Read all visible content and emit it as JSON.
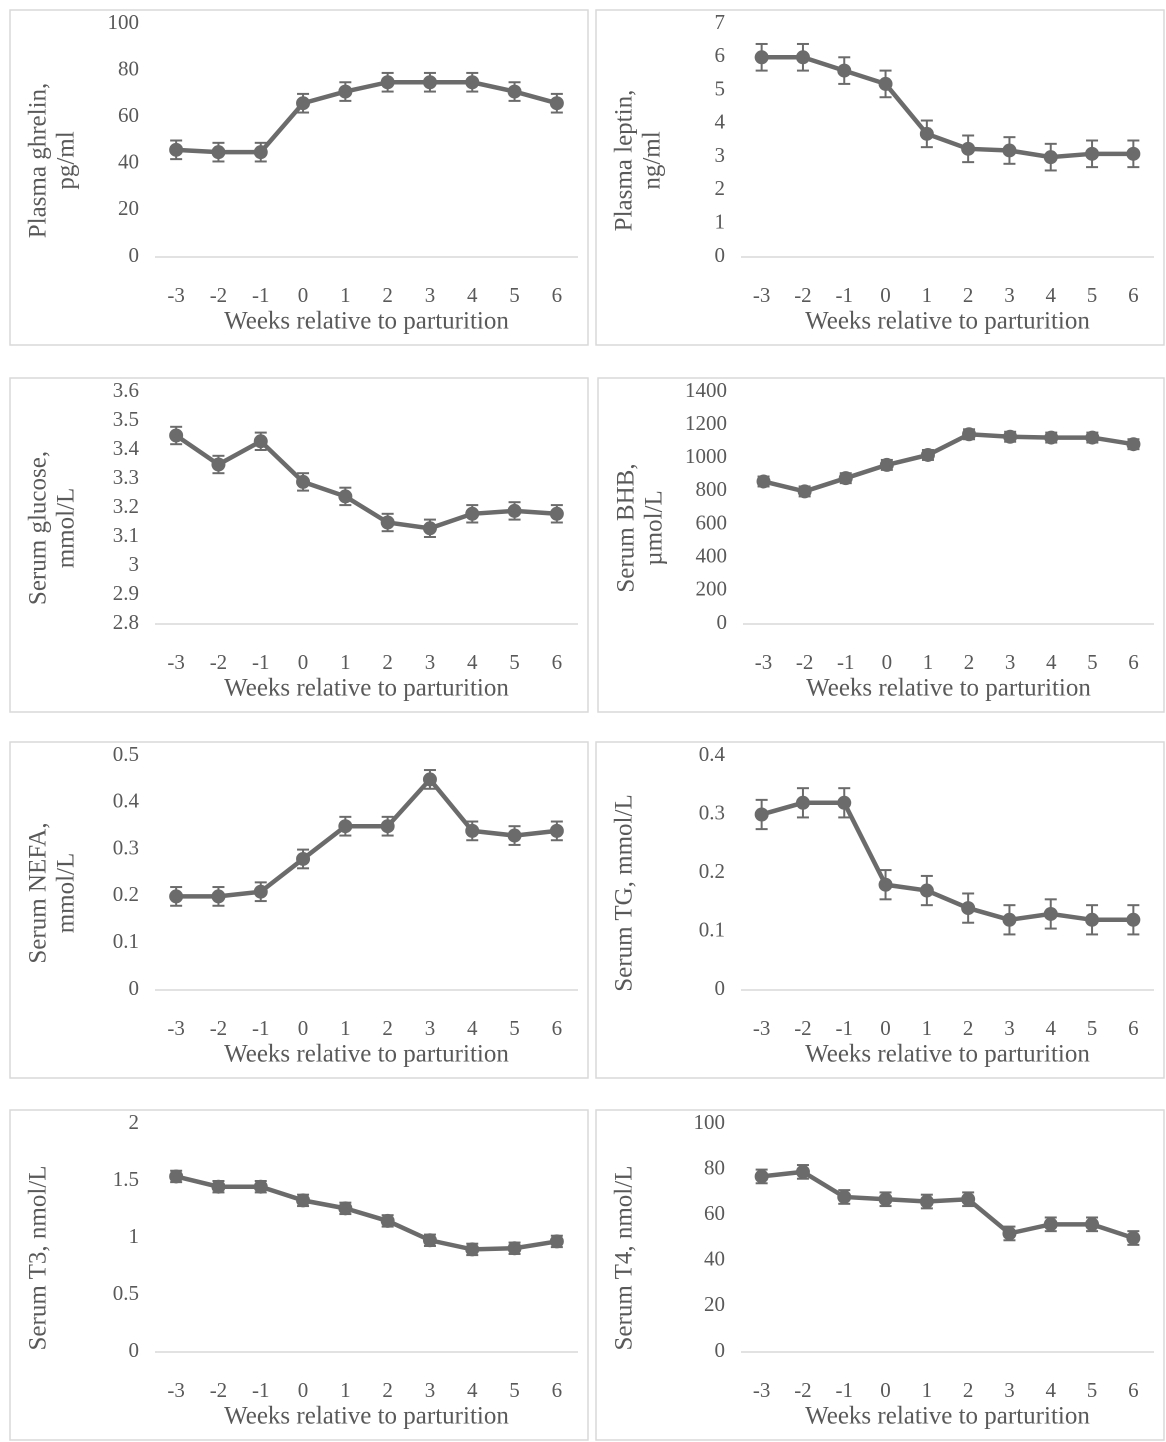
{
  "chart_data": [
    {
      "type": "line",
      "ylabel": [
        "Plasma ghrelin,",
        "pg/ml"
      ],
      "xlabel": "Weeks relative to parturition",
      "categories": [
        "-3",
        "-2",
        "-1",
        "0",
        "1",
        "2",
        "3",
        "4",
        "5",
        "6"
      ],
      "values": [
        46,
        45,
        45,
        66,
        71,
        75,
        75,
        75,
        71,
        66
      ],
      "errors": [
        4,
        4,
        4,
        4,
        4,
        4,
        4,
        4,
        4,
        4
      ],
      "color": "#6b6b6b",
      "ylim": [
        0,
        100
      ],
      "yticks": [
        0,
        20,
        40,
        60,
        80,
        100
      ]
    },
    {
      "type": "line",
      "ylabel": [
        "Plasma leptin,",
        "ng/ml"
      ],
      "xlabel": "Weeks relative to parturition",
      "categories": [
        "-3",
        "-2",
        "-1",
        "0",
        "1",
        "2",
        "3",
        "4",
        "5",
        "6"
      ],
      "values": [
        6.0,
        6.0,
        5.6,
        5.2,
        3.7,
        3.25,
        3.2,
        3.0,
        3.1,
        3.1
      ],
      "errors": [
        0.4,
        0.4,
        0.4,
        0.4,
        0.4,
        0.4,
        0.4,
        0.4,
        0.4,
        0.4
      ],
      "color": "#6b6b6b",
      "ylim": [
        0,
        7
      ],
      "yticks": [
        0,
        1,
        2,
        3,
        4,
        5,
        6,
        7
      ]
    },
    {
      "type": "line",
      "ylabel": [
        "Serum glucose,",
        "mmol/L"
      ],
      "xlabel": "Weeks relative to parturition",
      "categories": [
        "-3",
        "-2",
        "-1",
        "0",
        "1",
        "2",
        "3",
        "4",
        "5",
        "6"
      ],
      "values": [
        3.45,
        3.35,
        3.43,
        3.29,
        3.24,
        3.15,
        3.13,
        3.18,
        3.19,
        3.18
      ],
      "errors": [
        0.03,
        0.03,
        0.03,
        0.03,
        0.03,
        0.03,
        0.03,
        0.03,
        0.03,
        0.03
      ],
      "color": "#6b6b6b",
      "ylim": [
        2.8,
        3.6
      ],
      "yticks": [
        2.8,
        2.9,
        3,
        3.1,
        3.2,
        3.3,
        3.4,
        3.5,
        3.6
      ]
    },
    {
      "type": "line",
      "ylabel": [
        "Serum BHB,",
        "µmol/L"
      ],
      "xlabel": "Weeks relative to parturition",
      "categories": [
        "-3",
        "-2",
        "-1",
        "0",
        "1",
        "2",
        "3",
        "4",
        "5",
        "6"
      ],
      "values": [
        860,
        800,
        880,
        960,
        1020,
        1145,
        1130,
        1125,
        1125,
        1085
      ],
      "errors": [
        30,
        30,
        30,
        30,
        30,
        30,
        30,
        30,
        30,
        30
      ],
      "color": "#6b6b6b",
      "ylim": [
        0,
        1400
      ],
      "yticks": [
        0,
        200,
        400,
        600,
        800,
        1000,
        1200,
        1400
      ]
    },
    {
      "type": "line",
      "ylabel": [
        "Serum NEFA,",
        "mmol/L"
      ],
      "xlabel": "Weeks relative to parturition",
      "categories": [
        "-3",
        "-2",
        "-1",
        "0",
        "1",
        "2",
        "3",
        "4",
        "5",
        "6"
      ],
      "values": [
        0.2,
        0.2,
        0.21,
        0.28,
        0.35,
        0.35,
        0.45,
        0.34,
        0.33,
        0.34
      ],
      "errors": [
        0.02,
        0.02,
        0.02,
        0.02,
        0.02,
        0.02,
        0.02,
        0.02,
        0.02,
        0.02
      ],
      "color": "#6b6b6b",
      "ylim": [
        0,
        0.5
      ],
      "yticks": [
        0,
        0.1,
        0.2,
        0.3,
        0.4,
        0.5
      ]
    },
    {
      "type": "line",
      "ylabel": [
        "Serum TG, mmol/L"
      ],
      "xlabel": "Weeks relative to parturition",
      "categories": [
        "-3",
        "-2",
        "-1",
        "0",
        "1",
        "2",
        "3",
        "4",
        "5",
        "6"
      ],
      "values": [
        0.3,
        0.32,
        0.32,
        0.18,
        0.17,
        0.14,
        0.12,
        0.13,
        0.12,
        0.12
      ],
      "errors": [
        0.025,
        0.025,
        0.025,
        0.025,
        0.025,
        0.025,
        0.025,
        0.025,
        0.025,
        0.025
      ],
      "color": "#6b6b6b",
      "ylim": [
        0,
        0.4
      ],
      "yticks": [
        0,
        0.1,
        0.2,
        0.3,
        0.4
      ]
    },
    {
      "type": "line",
      "ylabel": [
        "Serum T3, nmol/L"
      ],
      "xlabel": "Weeks relative to parturition",
      "categories": [
        "-3",
        "-2",
        "-1",
        "0",
        "1",
        "2",
        "3",
        "4",
        "5",
        "6"
      ],
      "values": [
        1.54,
        1.45,
        1.45,
        1.33,
        1.26,
        1.15,
        0.98,
        0.9,
        0.91,
        0.97
      ],
      "errors": [
        0.05,
        0.05,
        0.05,
        0.05,
        0.05,
        0.05,
        0.05,
        0.05,
        0.05,
        0.05
      ],
      "color": "#6b6b6b",
      "ylim": [
        0,
        2
      ],
      "yticks": [
        0,
        0.5,
        1,
        1.5,
        2
      ]
    },
    {
      "type": "line",
      "ylabel": [
        "Serum T4, nmol/L"
      ],
      "xlabel": "Weeks relative to parturition",
      "categories": [
        "-3",
        "-2",
        "-1",
        "0",
        "1",
        "2",
        "3",
        "4",
        "5",
        "6"
      ],
      "values": [
        77,
        79,
        68,
        67,
        66,
        67,
        52,
        56,
        56,
        50
      ],
      "errors": [
        3,
        3,
        3,
        3,
        3,
        3,
        3,
        3,
        3,
        3
      ],
      "color": "#6b6b6b",
      "ylim": [
        0,
        100
      ],
      "yticks": [
        0,
        20,
        40,
        60,
        80,
        100
      ]
    }
  ]
}
